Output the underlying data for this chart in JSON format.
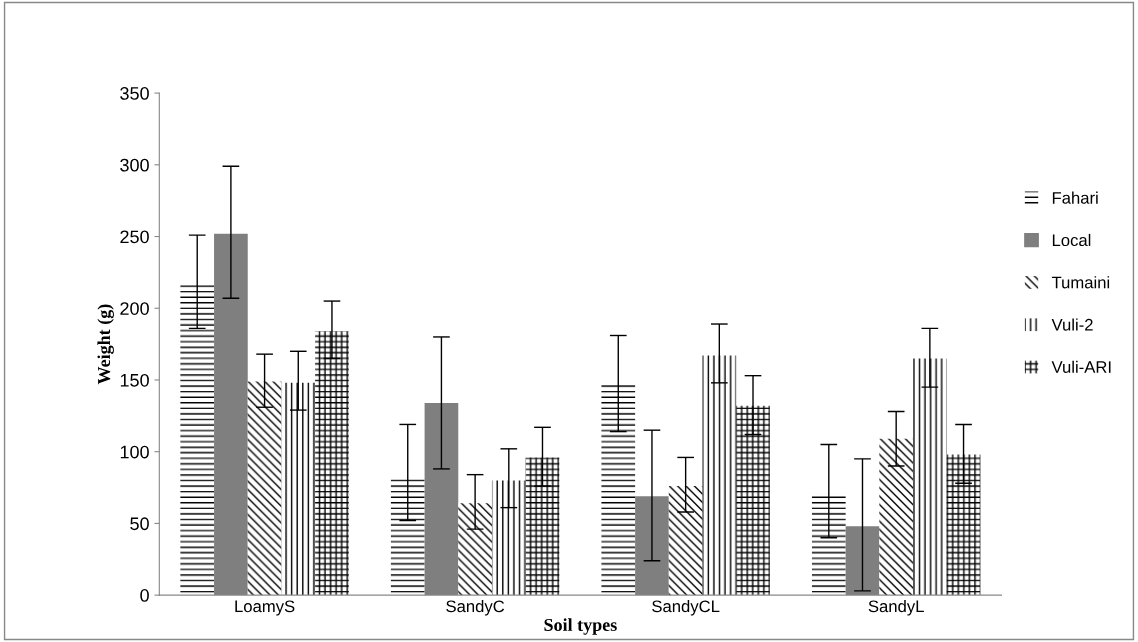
{
  "chart_data": {
    "type": "bar",
    "xlabel": "Soil types",
    "ylabel": "Weight (g)",
    "categories": [
      "LoamyS",
      "SandyC",
      "SandyCL",
      "SandyL"
    ],
    "series": [
      {
        "name": "Fahari",
        "color": "#000000",
        "values": [
          216,
          82,
          147,
          71
        ],
        "errors": [
          [
            186,
            251
          ],
          [
            52,
            119
          ],
          [
            114,
            181
          ],
          [
            40,
            105
          ]
        ]
      },
      {
        "name": "Local",
        "color": "#7f7f7f",
        "values": [
          252,
          134,
          69,
          48
        ],
        "errors": [
          [
            207,
            299
          ],
          [
            88,
            180
          ],
          [
            24,
            115
          ],
          [
            3,
            95
          ]
        ]
      },
      {
        "name": "Tumaini",
        "color": "#000000",
        "values": [
          149,
          64,
          76,
          109
        ],
        "errors": [
          [
            131,
            168
          ],
          [
            46,
            84
          ],
          [
            58,
            96
          ],
          [
            90,
            128
          ]
        ]
      },
      {
        "name": "Vuli-2",
        "color": "#000000",
        "values": [
          148,
          80,
          167,
          165
        ],
        "errors": [
          [
            129,
            170
          ],
          [
            61,
            102
          ],
          [
            148,
            189
          ],
          [
            145,
            186
          ]
        ]
      },
      {
        "name": "Vuli-ARI",
        "color": "#000000",
        "values": [
          184,
          96,
          132,
          98
        ],
        "errors": [
          [
            165,
            205
          ],
          [
            76,
            117
          ],
          [
            112,
            153
          ],
          [
            78,
            119
          ]
        ]
      }
    ],
    "ylim": [
      0,
      350
    ],
    "yticks": [
      0,
      50,
      100,
      150,
      200,
      250,
      300,
      350
    ],
    "grid": false,
    "legend": "right"
  }
}
